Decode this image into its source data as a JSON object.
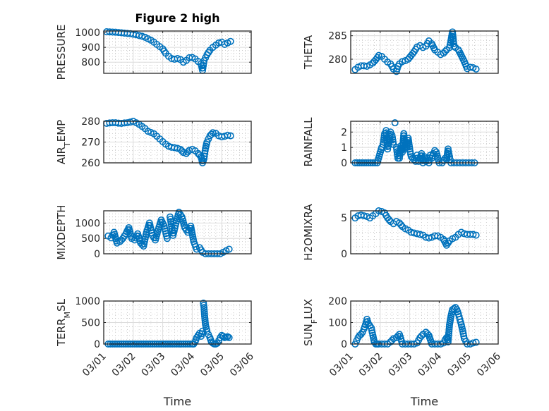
{
  "chart_data": [
    {
      "type": "scatter",
      "title": "Figure 2 high",
      "ylabel": "PRESSURE",
      "xlabel": "",
      "xlim": [
        0,
        5
      ],
      "ylim": [
        725,
        1010
      ],
      "yticks": [
        800,
        900,
        1000
      ],
      "ytick_labels": [
        "800",
        "900",
        "1000"
      ],
      "xticks": [
        0,
        1,
        2,
        3,
        4,
        5
      ],
      "xtick_labels": [],
      "grid": true,
      "color": "#0072BD",
      "x": [
        0.1,
        0.2,
        0.3,
        0.4,
        0.5,
        0.6,
        0.7,
        0.8,
        0.9,
        1.0,
        1.1,
        1.2,
        1.3,
        1.4,
        1.5,
        1.6,
        1.7,
        1.8,
        1.9,
        2.0,
        2.05,
        2.1,
        2.2,
        2.3,
        2.4,
        2.5,
        2.6,
        2.7,
        2.8,
        2.9,
        3.0,
        3.1,
        3.2,
        3.3,
        3.35,
        3.4,
        3.45,
        3.5,
        3.55,
        3.6,
        3.7,
        3.8,
        3.9,
        4.0,
        4.1,
        4.2,
        4.3
      ],
      "y": [
        1005,
        1004,
        1003,
        1002,
        1000,
        998,
        996,
        994,
        992,
        988,
        985,
        980,
        975,
        968,
        958,
        948,
        935,
        920,
        905,
        890,
        875,
        860,
        840,
        825,
        820,
        825,
        818,
        800,
        812,
        830,
        832,
        822,
        805,
        790,
        745,
        810,
        830,
        850,
        865,
        880,
        900,
        915,
        930,
        935,
        920,
        930,
        940
      ]
    },
    {
      "type": "scatter",
      "title": "",
      "ylabel": "THETA",
      "xlabel": "",
      "xlim": [
        0,
        5
      ],
      "ylim": [
        277,
        286
      ],
      "yticks": [
        280,
        285
      ],
      "ytick_labels": [
        "280",
        "285"
      ],
      "xticks": [
        0,
        1,
        2,
        3,
        4,
        5
      ],
      "xtick_labels": [],
      "grid": true,
      "color": "#0072BD",
      "x": [
        0.15,
        0.25,
        0.35,
        0.45,
        0.55,
        0.65,
        0.75,
        0.85,
        0.95,
        1.05,
        1.15,
        1.25,
        1.35,
        1.45,
        1.55,
        1.6,
        1.65,
        1.75,
        1.85,
        1.95,
        2.05,
        2.15,
        2.25,
        2.35,
        2.45,
        2.55,
        2.65,
        2.75,
        2.85,
        2.95,
        3.05,
        3.15,
        3.25,
        3.35,
        3.4,
        3.45,
        3.5,
        3.55,
        3.65,
        3.75,
        3.85,
        3.95,
        4.05,
        4.15,
        4.25
      ],
      "y": [
        277.8,
        278.3,
        278.6,
        278.6,
        278.5,
        278.8,
        279.2,
        279.9,
        280.8,
        280.6,
        280.0,
        279.4,
        279.0,
        277.9,
        277.4,
        278.5,
        279.0,
        279.5,
        279.7,
        280.0,
        280.8,
        281.6,
        282.6,
        282.9,
        282.5,
        282.8,
        283.9,
        283.3,
        282.0,
        281.5,
        281.0,
        281.3,
        282.0,
        282.5,
        284.0,
        285.8,
        282.8,
        282.5,
        282.0,
        280.8,
        279.5,
        278.0,
        278.3,
        278.2,
        277.9
      ]
    },
    {
      "type": "scatter",
      "title": "",
      "ylabel": "AIR_TEMP",
      "xlabel": "",
      "xlim": [
        0,
        5
      ],
      "ylim": [
        260,
        280
      ],
      "yticks": [
        260,
        270,
        280
      ],
      "ytick_labels": [
        "260",
        "270",
        "280"
      ],
      "xticks": [
        0,
        1,
        2,
        3,
        4,
        5
      ],
      "xtick_labels": [],
      "grid": true,
      "color": "#0072BD",
      "x": [
        0.1,
        0.2,
        0.3,
        0.4,
        0.5,
        0.6,
        0.7,
        0.8,
        0.9,
        1.0,
        1.1,
        1.2,
        1.3,
        1.4,
        1.5,
        1.6,
        1.7,
        1.8,
        1.9,
        2.0,
        2.1,
        2.2,
        2.3,
        2.4,
        2.5,
        2.6,
        2.7,
        2.8,
        2.9,
        3.0,
        3.1,
        3.2,
        3.3,
        3.35,
        3.4,
        3.45,
        3.5,
        3.55,
        3.6,
        3.7,
        3.8,
        3.9,
        4.0,
        4.1,
        4.2,
        4.3
      ],
      "y": [
        279,
        279.2,
        279.3,
        279.3,
        279.1,
        279.0,
        279.2,
        279.3,
        279.6,
        280.0,
        279.3,
        278.5,
        277.5,
        276.5,
        275.2,
        274.6,
        274.0,
        272.8,
        271.5,
        270.2,
        269.0,
        268.0,
        267.5,
        267.3,
        267.0,
        266.5,
        265.0,
        264.5,
        266.0,
        266.5,
        265.8,
        264.5,
        263.0,
        260.0,
        262.0,
        267.0,
        270.0,
        271.5,
        273.0,
        274.5,
        274.2,
        273.0,
        272.5,
        272.8,
        273.3,
        273.0
      ]
    },
    {
      "type": "scatter",
      "title": "",
      "ylabel": "RAINFALL",
      "xlabel": "",
      "xlim": [
        0,
        5
      ],
      "ylim": [
        0,
        2.7
      ],
      "yticks": [
        0,
        1,
        2
      ],
      "ytick_labels": [
        "0",
        "1",
        "2"
      ],
      "xticks": [
        0,
        1,
        2,
        3,
        4,
        5
      ],
      "xtick_labels": [],
      "grid": true,
      "color": "#0072BD",
      "x": [
        0.15,
        0.3,
        0.45,
        0.6,
        0.75,
        0.9,
        1.05,
        1.1,
        1.15,
        1.2,
        1.25,
        1.3,
        1.35,
        1.4,
        1.45,
        1.5,
        1.55,
        1.6,
        1.65,
        1.7,
        1.75,
        1.8,
        1.85,
        1.9,
        1.95,
        2.0,
        2.05,
        2.1,
        2.15,
        2.2,
        2.25,
        2.3,
        2.35,
        2.4,
        2.45,
        2.5,
        2.55,
        2.6,
        2.65,
        2.7,
        2.75,
        2.8,
        2.85,
        2.9,
        3.0,
        3.1,
        3.2,
        3.25,
        3.3,
        3.35,
        3.4,
        3.5,
        3.6,
        3.7,
        3.8,
        3.9,
        4.0,
        4.1,
        4.2
      ],
      "y": [
        0,
        0,
        0,
        0,
        0,
        0,
        1.0,
        1.2,
        1.9,
        2.1,
        0.9,
        1.3,
        2.0,
        1.8,
        1.2,
        2.6,
        1.0,
        0.3,
        0.3,
        1.1,
        0.7,
        1.9,
        0.9,
        1.0,
        1.6,
        0.9,
        0.4,
        0.3,
        0.2,
        0.1,
        0.5,
        0.1,
        0.3,
        0.6,
        0.0,
        0.4,
        0.1,
        0.3,
        0.0,
        0.5,
        0.3,
        0.6,
        0.8,
        0.7,
        0.0,
        0.0,
        0.3,
        0.2,
        0.9,
        0.4,
        0.0,
        0.0,
        0.0,
        0.0,
        0.0,
        0.0,
        0.0,
        0.0,
        0.0
      ]
    },
    {
      "type": "scatter",
      "title": "",
      "ylabel": "MIXDEPTH",
      "xlabel": "",
      "xlim": [
        0,
        5
      ],
      "ylim": [
        0,
        1400
      ],
      "yticks": [
        0,
        500,
        1000
      ],
      "ytick_labels": [
        "0",
        "500",
        "1000"
      ],
      "xticks": [
        0,
        1,
        2,
        3,
        4,
        5
      ],
      "xtick_labels": [],
      "grid": true,
      "color": "#0072BD",
      "x": [
        0.15,
        0.25,
        0.35,
        0.45,
        0.55,
        0.65,
        0.75,
        0.85,
        0.95,
        1.05,
        1.15,
        1.25,
        1.35,
        1.45,
        1.55,
        1.65,
        1.75,
        1.85,
        1.95,
        2.05,
        2.15,
        2.25,
        2.35,
        2.45,
        2.55,
        2.65,
        2.75,
        2.85,
        2.95,
        3.05,
        3.15,
        3.25,
        3.35,
        3.45,
        3.55,
        3.65,
        3.75,
        3.85,
        3.95,
        4.05,
        4.15,
        4.25
      ],
      "y": [
        580,
        520,
        700,
        350,
        400,
        500,
        650,
        850,
        500,
        450,
        650,
        350,
        250,
        700,
        1000,
        600,
        450,
        800,
        1100,
        900,
        500,
        1200,
        600,
        1000,
        1350,
        1200,
        850,
        700,
        900,
        400,
        150,
        200,
        50,
        0,
        0,
        0,
        0,
        0,
        0,
        50,
        100,
        150
      ]
    },
    {
      "type": "scatter",
      "title": "",
      "ylabel": "H2OMIXRA",
      "xlabel": "",
      "xlim": [
        0,
        5
      ],
      "ylim": [
        0,
        6
      ],
      "yticks": [
        0,
        5
      ],
      "ytick_labels": [
        "0",
        "5"
      ],
      "xticks": [
        0,
        1,
        2,
        3,
        4,
        5
      ],
      "xtick_labels": [],
      "grid": true,
      "color": "#0072BD",
      "x": [
        0.15,
        0.25,
        0.35,
        0.45,
        0.55,
        0.65,
        0.75,
        0.85,
        0.95,
        1.05,
        1.15,
        1.25,
        1.35,
        1.45,
        1.55,
        1.65,
        1.75,
        1.85,
        1.95,
        2.05,
        2.15,
        2.25,
        2.35,
        2.45,
        2.55,
        2.65,
        2.75,
        2.85,
        2.95,
        3.05,
        3.15,
        3.25,
        3.35,
        3.45,
        3.55,
        3.65,
        3.75,
        3.85,
        3.95,
        4.05,
        4.15,
        4.25
      ],
      "y": [
        5.0,
        5.3,
        5.4,
        5.3,
        5.2,
        5.0,
        5.3,
        5.6,
        6.0,
        5.9,
        5.7,
        5.0,
        4.5,
        4.2,
        4.5,
        4.3,
        3.8,
        3.5,
        3.3,
        3.0,
        2.9,
        2.8,
        2.7,
        2.6,
        2.3,
        2.2,
        2.3,
        2.5,
        2.5,
        2.3,
        2.0,
        1.2,
        1.8,
        2.1,
        2.3,
        2.7,
        3.0,
        2.8,
        2.7,
        2.7,
        2.7,
        2.6
      ]
    },
    {
      "type": "scatter",
      "title": "",
      "ylabel": "TERR_MSL",
      "xlabel": "Time",
      "xlim": [
        0,
        5
      ],
      "ylim": [
        0,
        1000
      ],
      "yticks": [
        0,
        500,
        1000
      ],
      "ytick_labels": [
        "0",
        "500",
        "1000"
      ],
      "xticks": [
        0,
        1,
        2,
        3,
        4,
        5
      ],
      "xtick_labels": [
        "03/01",
        "03/02",
        "03/03",
        "03/04",
        "03/05",
        "03/06"
      ],
      "grid": true,
      "color": "#0072BD",
      "x": [
        0.15,
        0.3,
        0.45,
        0.6,
        0.75,
        0.9,
        1.05,
        1.2,
        1.35,
        1.5,
        1.65,
        1.8,
        1.95,
        2.1,
        2.25,
        2.4,
        2.55,
        2.7,
        2.85,
        3.0,
        3.05,
        3.1,
        3.15,
        3.2,
        3.25,
        3.3,
        3.35,
        3.38,
        3.4,
        3.42,
        3.45,
        3.5,
        3.55,
        3.6,
        3.65,
        3.7,
        3.75,
        3.8,
        3.85,
        3.9,
        3.95,
        4.0,
        4.05,
        4.1,
        4.15,
        4.2,
        4.25
      ],
      "y": [
        0,
        0,
        0,
        0,
        0,
        0,
        0,
        0,
        0,
        0,
        0,
        0,
        0,
        0,
        0,
        0,
        0,
        0,
        0,
        0,
        0,
        50,
        150,
        200,
        250,
        180,
        300,
        950,
        850,
        650,
        450,
        300,
        220,
        150,
        50,
        20,
        0,
        0,
        20,
        80,
        150,
        200,
        180,
        150,
        160,
        170,
        150
      ]
    },
    {
      "type": "scatter",
      "title": "",
      "ylabel": "SUN_FLUX",
      "xlabel": "Time",
      "xlim": [
        0,
        5
      ],
      "ylim": [
        0,
        200
      ],
      "yticks": [
        0,
        100,
        200
      ],
      "ytick_labels": [
        "0",
        "100",
        "200"
      ],
      "xticks": [
        0,
        1,
        2,
        3,
        4,
        5
      ],
      "xtick_labels": [
        "03/01",
        "03/02",
        "03/03",
        "03/04",
        "03/05",
        "03/06"
      ],
      "grid": true,
      "color": "#0072BD",
      "x": [
        0.15,
        0.2,
        0.25,
        0.3,
        0.35,
        0.4,
        0.45,
        0.5,
        0.55,
        0.6,
        0.65,
        0.7,
        0.75,
        0.8,
        0.85,
        0.9,
        0.95,
        1.05,
        1.15,
        1.25,
        1.35,
        1.45,
        1.55,
        1.65,
        1.7,
        1.75,
        1.85,
        1.95,
        2.05,
        2.15,
        2.25,
        2.35,
        2.45,
        2.55,
        2.65,
        2.7,
        2.75,
        2.85,
        2.95,
        3.05,
        3.15,
        3.2,
        3.25,
        3.3,
        3.35,
        3.4,
        3.45,
        3.5,
        3.55,
        3.6,
        3.65,
        3.7,
        3.75,
        3.8,
        3.85,
        3.95,
        4.05,
        4.15,
        4.25
      ],
      "y": [
        0,
        15,
        30,
        40,
        45,
        55,
        70,
        90,
        115,
        95,
        85,
        75,
        40,
        10,
        0,
        0,
        0,
        0,
        0,
        0,
        10,
        25,
        30,
        45,
        25,
        0,
        0,
        0,
        0,
        0,
        5,
        30,
        45,
        55,
        40,
        20,
        0,
        0,
        0,
        0,
        5,
        20,
        30,
        10,
        90,
        130,
        160,
        165,
        170,
        160,
        140,
        115,
        90,
        60,
        25,
        0,
        0,
        5,
        8
      ]
    }
  ]
}
